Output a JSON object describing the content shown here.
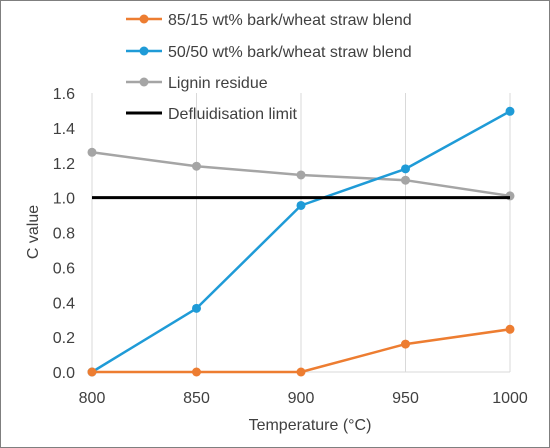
{
  "chart_data": {
    "type": "line",
    "xlabel": "Temperature (°C)",
    "ylabel": "C value",
    "x": [
      800,
      850,
      900,
      950,
      1000
    ],
    "xlim": [
      800,
      1000
    ],
    "ylim": [
      0,
      1.6
    ],
    "xticks": [
      "800",
      "850",
      "900",
      "950",
      "1000"
    ],
    "yticks": [
      "0.0",
      "0.2",
      "0.4",
      "0.6",
      "0.8",
      "1.0",
      "1.2",
      "1.4",
      "1.6"
    ],
    "grid": "vertical",
    "legend_position": "top",
    "series": [
      {
        "name": "85/15 wt% bark/wheat straw blend",
        "color": "#ED7D31",
        "values": [
          0.0,
          0.0,
          0.0,
          0.16,
          0.245
        ],
        "markers": true
      },
      {
        "name": "50/50 wt% bark/wheat straw blend",
        "color": "#1F9BD7",
        "values": [
          0.0,
          0.365,
          0.955,
          1.165,
          1.495
        ],
        "markers": true
      },
      {
        "name": "Lignin residue",
        "color": "#A5A5A5",
        "values": [
          1.26,
          1.18,
          1.13,
          1.1,
          1.01
        ],
        "markers": true
      },
      {
        "name": "Defluidisation limit",
        "color": "#000000",
        "values": [
          1.0,
          1.0,
          1.0,
          1.0,
          1.0
        ],
        "markers": false
      }
    ]
  }
}
